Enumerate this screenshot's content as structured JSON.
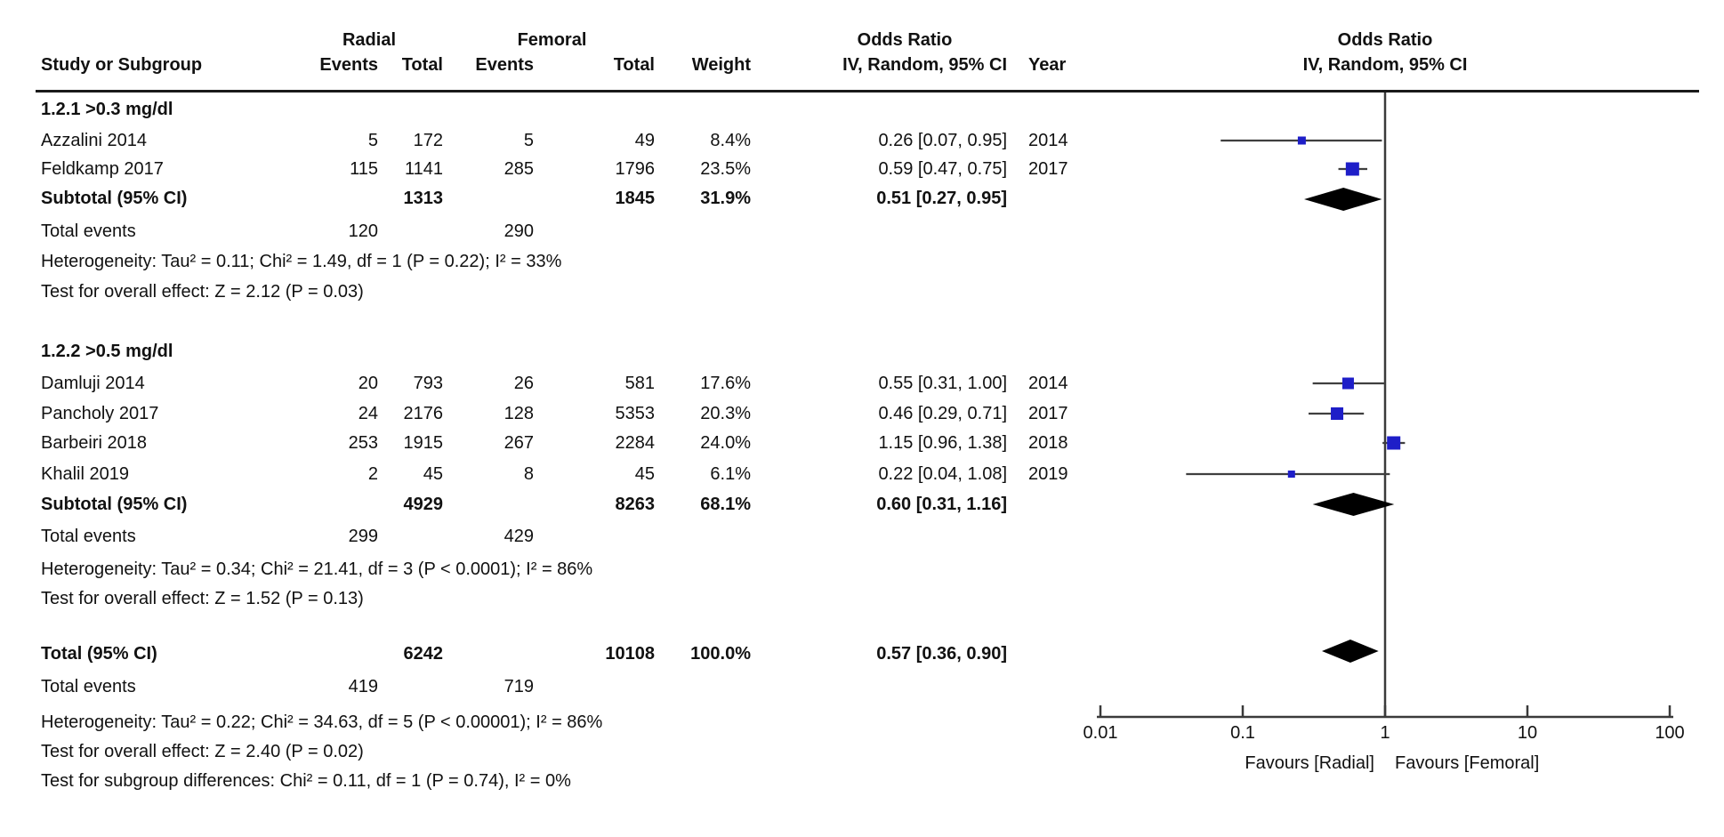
{
  "colors": {
    "square": "#1e1ec8",
    "ci_line": "#3f3f3f",
    "diamond": "#000000",
    "axis": "#3a3a3a",
    "text": "#111111"
  },
  "header": {
    "group_radial": "Radial",
    "group_femoral": "Femoral",
    "group_or": "Odds Ratio",
    "study": "Study or Subgroup",
    "radial_events": "Events",
    "radial_total": "Total",
    "femoral_events": "Events",
    "femoral_total": "Total",
    "weight": "Weight",
    "method": "IV, Random, 95% CI",
    "year": "Year",
    "plot_title": "Odds Ratio",
    "plot_method": "IV, Random, 95% CI"
  },
  "chart_data": {
    "type": "forest",
    "effect_measure": "Odds Ratio",
    "model": "IV, Random, 95% CI",
    "groups": [
      {
        "label": "1.2.1 >0.3 mg/dl",
        "studies": [
          {
            "name": "Azzalini 2014",
            "radial_events": "5",
            "radial_total": "172",
            "femoral_events": "5",
            "femoral_total": "49",
            "weight": "8.4%",
            "weight_pct": 8.4,
            "ci_text": "0.26 [0.07, 0.95]",
            "year": "2014",
            "or": 0.26,
            "ci_low": 0.07,
            "ci_high": 0.95
          },
          {
            "name": "Feldkamp 2017",
            "radial_events": "115",
            "radial_total": "1141",
            "femoral_events": "285",
            "femoral_total": "1796",
            "weight": "23.5%",
            "weight_pct": 23.5,
            "ci_text": "0.59 [0.47, 0.75]",
            "year": "2017",
            "or": 0.59,
            "ci_low": 0.47,
            "ci_high": 0.75
          }
        ],
        "subtotal": {
          "label": "Subtotal (95% CI)",
          "radial_total": "1313",
          "femoral_total": "1845",
          "weight": "31.9%",
          "ci_text": "0.51 [0.27, 0.95]",
          "or": 0.51,
          "ci_low": 0.27,
          "ci_high": 0.95
        },
        "total_events": {
          "label": "Total events",
          "radial": "120",
          "femoral": "290"
        },
        "heterogeneity": "Heterogeneity: Tau² = 0.11; Chi² = 1.49, df = 1 (P = 0.22); I² = 33%",
        "overall_effect": "Test for overall effect: Z = 2.12 (P = 0.03)"
      },
      {
        "label": "1.2.2 >0.5 mg/dl",
        "studies": [
          {
            "name": "Damluji 2014",
            "radial_events": "20",
            "radial_total": "793",
            "femoral_events": "26",
            "femoral_total": "581",
            "weight": "17.6%",
            "weight_pct": 17.6,
            "ci_text": "0.55 [0.31, 1.00]",
            "year": "2014",
            "or": 0.55,
            "ci_low": 0.31,
            "ci_high": 1.0
          },
          {
            "name": "Pancholy 2017",
            "radial_events": "24",
            "radial_total": "2176",
            "femoral_events": "128",
            "femoral_total": "5353",
            "weight": "20.3%",
            "weight_pct": 20.3,
            "ci_text": "0.46 [0.29, 0.71]",
            "year": "2017",
            "or": 0.46,
            "ci_low": 0.29,
            "ci_high": 0.71
          },
          {
            "name": "Barbeiri 2018",
            "radial_events": "253",
            "radial_total": "1915",
            "femoral_events": "267",
            "femoral_total": "2284",
            "weight": "24.0%",
            "weight_pct": 24.0,
            "ci_text": "1.15 [0.96, 1.38]",
            "year": "2018",
            "or": 1.15,
            "ci_low": 0.96,
            "ci_high": 1.38
          },
          {
            "name": "Khalil 2019",
            "radial_events": "2",
            "radial_total": "45",
            "femoral_events": "8",
            "femoral_total": "45",
            "weight": "6.1%",
            "weight_pct": 6.1,
            "ci_text": "0.22 [0.04, 1.08]",
            "year": "2019",
            "or": 0.22,
            "ci_low": 0.04,
            "ci_high": 1.08
          }
        ],
        "subtotal": {
          "label": "Subtotal (95% CI)",
          "radial_total": "4929",
          "femoral_total": "8263",
          "weight": "68.1%",
          "ci_text": "0.60 [0.31, 1.16]",
          "or": 0.6,
          "ci_low": 0.31,
          "ci_high": 1.16
        },
        "total_events": {
          "label": "Total events",
          "radial": "299",
          "femoral": "429"
        },
        "heterogeneity": "Heterogeneity: Tau² = 0.34; Chi² = 21.41, df = 3 (P < 0.0001); I² = 86%",
        "overall_effect": "Test for overall effect: Z = 1.52 (P = 0.13)"
      }
    ],
    "total": {
      "label": "Total (95% CI)",
      "radial_total": "6242",
      "femoral_total": "10108",
      "weight": "100.0%",
      "ci_text": "0.57 [0.36, 0.90]",
      "or": 0.57,
      "ci_low": 0.36,
      "ci_high": 0.9
    },
    "total_events": {
      "label": "Total events",
      "radial": "419",
      "femoral": "719"
    },
    "heterogeneity": "Heterogeneity: Tau² = 0.22; Chi² = 34.63, df = 5 (P < 0.00001); I² = 86%",
    "overall_effect": "Test for overall effect: Z = 2.40 (P = 0.02)",
    "subgroup_diff": "Test for subgroup differences: Chi² = 0.11, df = 1 (P = 0.74), I² = 0%",
    "axis": {
      "scale": "log",
      "ticks": [
        "0.01",
        "0.1",
        "1",
        "10",
        "100"
      ],
      "tick_values": [
        0.01,
        0.1,
        1,
        10,
        100
      ],
      "favours_left": "Favours [Radial]",
      "favours_right": "Favours [Femoral]"
    }
  }
}
